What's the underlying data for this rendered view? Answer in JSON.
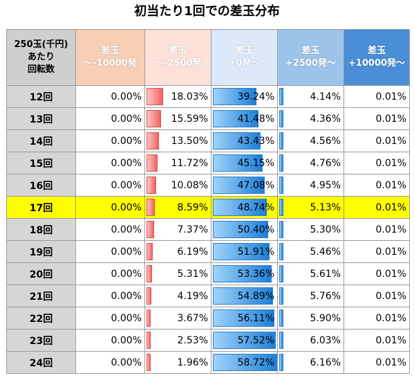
{
  "title": "初当たり1回での差玉分布",
  "header": {
    "first": [
      "250玉(千円)",
      "あたり",
      "回転数"
    ],
    "cols": [
      {
        "line1": "差玉",
        "line2": "～-10000発"
      },
      {
        "line1": "差玉",
        "line2": "～-2500発"
      },
      {
        "line1": "差玉",
        "line2": "+0発～"
      },
      {
        "line1": "差玉",
        "line2": "+2500発～"
      },
      {
        "line1": "差玉",
        "line2": "+10000発～"
      }
    ]
  },
  "rows": [
    {
      "label": "12回",
      "values": [
        "0.00%",
        "18.03%",
        "39.24%",
        "4.14%",
        "0.01%"
      ],
      "nums": [
        0.0,
        18.03,
        39.24,
        4.14,
        0.01
      ]
    },
    {
      "label": "13回",
      "values": [
        "0.00%",
        "15.59%",
        "41.48%",
        "4.36%",
        "0.01%"
      ],
      "nums": [
        0.0,
        15.59,
        41.48,
        4.36,
        0.01
      ]
    },
    {
      "label": "14回",
      "values": [
        "0.00%",
        "13.50%",
        "43.43%",
        "4.56%",
        "0.01%"
      ],
      "nums": [
        0.0,
        13.5,
        43.43,
        4.56,
        0.01
      ]
    },
    {
      "label": "15回",
      "values": [
        "0.00%",
        "11.72%",
        "45.15%",
        "4.76%",
        "0.01%"
      ],
      "nums": [
        0.0,
        11.72,
        45.15,
        4.76,
        0.01
      ]
    },
    {
      "label": "16回",
      "values": [
        "0.00%",
        "10.08%",
        "47.08%",
        "4.95%",
        "0.01%"
      ],
      "nums": [
        0.0,
        10.08,
        47.08,
        4.95,
        0.01
      ]
    },
    {
      "label": "17回",
      "values": [
        "0.00%",
        "8.59%",
        "48.74%",
        "5.13%",
        "0.01%"
      ],
      "nums": [
        0.0,
        8.59,
        48.74,
        5.13,
        0.01
      ],
      "highlight": true
    },
    {
      "label": "18回",
      "values": [
        "0.00%",
        "7.37%",
        "50.40%",
        "5.30%",
        "0.01%"
      ],
      "nums": [
        0.0,
        7.37,
        50.4,
        5.3,
        0.01
      ]
    },
    {
      "label": "19回",
      "values": [
        "0.00%",
        "6.19%",
        "51.91%",
        "5.46%",
        "0.01%"
      ],
      "nums": [
        0.0,
        6.19,
        51.91,
        5.46,
        0.01
      ]
    },
    {
      "label": "20回",
      "values": [
        "0.00%",
        "5.31%",
        "53.36%",
        "5.61%",
        "0.01%"
      ],
      "nums": [
        0.0,
        5.31,
        53.36,
        5.61,
        0.01
      ]
    },
    {
      "label": "21回",
      "values": [
        "0.00%",
        "4.19%",
        "54.89%",
        "5.76%",
        "0.01%"
      ],
      "nums": [
        0.0,
        4.19,
        54.89,
        5.76,
        0.01
      ]
    },
    {
      "label": "22回",
      "values": [
        "0.00%",
        "3.67%",
        "56.11%",
        "5.90%",
        "0.01%"
      ],
      "nums": [
        0.0,
        3.67,
        56.11,
        5.9,
        0.01
      ]
    },
    {
      "label": "23回",
      "values": [
        "0.00%",
        "2.53%",
        "57.52%",
        "6.03%",
        "0.01%"
      ],
      "nums": [
        0.0,
        2.53,
        57.52,
        6.03,
        0.01
      ]
    },
    {
      "label": "24回",
      "values": [
        "0.00%",
        "1.96%",
        "58.72%",
        "6.16%",
        "0.01%"
      ],
      "nums": [
        0.0,
        1.96,
        58.72,
        6.16,
        0.01
      ]
    }
  ],
  "colors": {
    "neg_bar": "#f06565",
    "pos_bar": "#1f7fd8",
    "highlight": "#ffff00"
  }
}
